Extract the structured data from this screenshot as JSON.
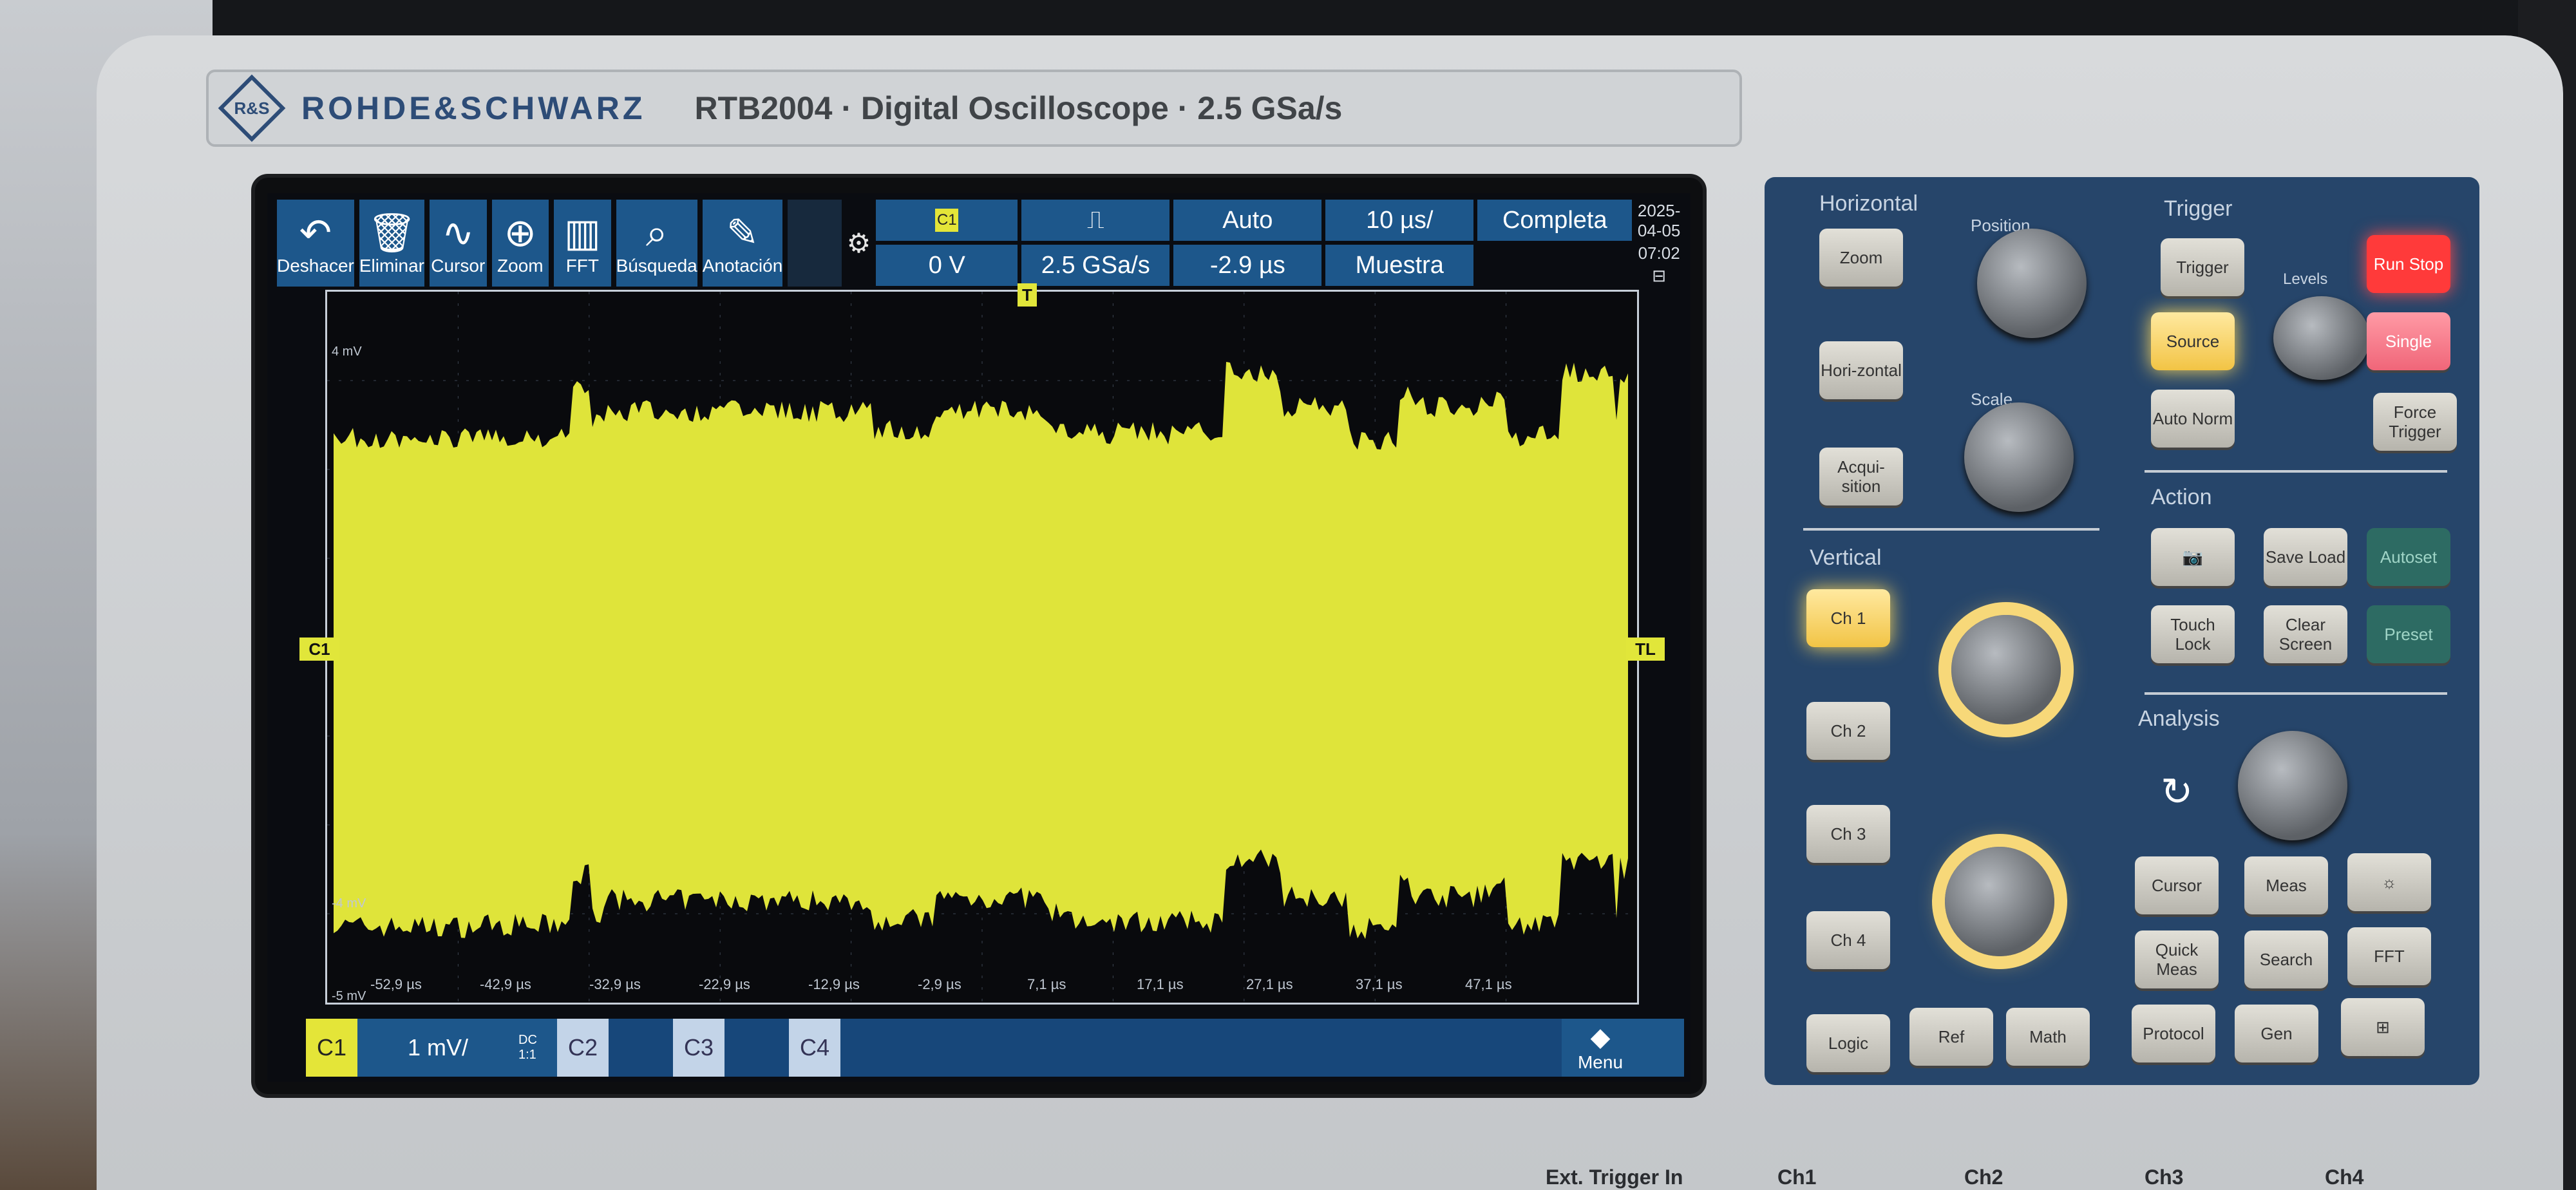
{
  "header": {
    "logo_text": "R&S",
    "brand": "ROHDE&SCHWARZ",
    "model": "RTB2004 · Digital Oscilloscope · 2.5 GSa/s"
  },
  "toolbar": {
    "buttons": [
      {
        "label": "Deshacer",
        "icon": "undo-icon"
      },
      {
        "label": "Eliminar",
        "icon": "trash-icon"
      },
      {
        "label": "Cursor",
        "icon": "cursor-wave-icon"
      },
      {
        "label": "Zoom",
        "icon": "zoom-icon"
      },
      {
        "label": "FFT",
        "icon": "fft-icon"
      },
      {
        "label": "Búsqueda",
        "icon": "search-icon"
      },
      {
        "label": "Anotación",
        "icon": "pencil-icon"
      }
    ]
  },
  "status": {
    "trigger_source": "C1",
    "trigger_slope": "rising-edge-icon",
    "trigger_mode": "Auto",
    "time_scale": "10 µs/",
    "acquisition": "Completa",
    "trigger_level": "0 V",
    "sample_rate": "2.5 GSa/s",
    "horizontal_position": "-2.9 µs",
    "acq_mode": "Muestra",
    "date": "2025-04-05",
    "time": "07:02"
  },
  "plot": {
    "trigger_marker": "T",
    "channel_marker": "C1",
    "trigger_level_marker": "TL",
    "top_level": "4 mV",
    "bottom_level": "-4 mV",
    "min_level": "-5 mV",
    "time_ticks": [
      "-52,9 µs",
      "-42,9 µs",
      "-32,9 µs",
      "-22,9 µs",
      "-12,9 µs",
      "-2,9 µs",
      "7,1 µs",
      "17,1 µs",
      "27,1 µs",
      "37,1 µs",
      "47,1 µs"
    ],
    "trace_color": "#dfe43a"
  },
  "channels": {
    "c1_label": "C1",
    "c1_scale": "1 mV/",
    "c1_coupling": "DC",
    "c1_extra": "1:1",
    "c2_label": "C2",
    "c3_label": "C3",
    "c4_label": "C4",
    "menu_label": "Menu"
  },
  "panel": {
    "horizontal_title": "Horizontal",
    "position_label": "Position",
    "scale_label": "Scale",
    "trigger_title": "Trigger",
    "level_label": "Levels",
    "vertical_title": "Vertical",
    "action_title": "Action",
    "analysis_title": "Analysis",
    "keys": {
      "zoom": "Zoom",
      "horizontal": "Hori-zontal",
      "acquisition": "Acqui-sition",
      "trigger": "Trigger",
      "source": "Source",
      "auto_norm": "Auto Norm",
      "run_stop": "Run Stop",
      "single": "Single",
      "force_trigger": "Force Trigger",
      "ch1": "Ch 1",
      "ch2": "Ch 2",
      "ch3": "Ch 3",
      "ch4": "Ch 4",
      "logic": "Logic",
      "ref": "Ref",
      "math": "Math",
      "camera": "camera-icon",
      "save_load": "Save Load",
      "autoset": "Autoset",
      "touch_lock": "Touch Lock",
      "clear_screen": "Clear Screen",
      "preset": "Preset",
      "cursor": "Cursor",
      "meas": "Meas",
      "brightness": "brightness-icon",
      "quick_meas": "Quick Meas",
      "search": "Search",
      "fft": "FFT",
      "protocol": "Protocol",
      "gen": "Gen",
      "apps": "apps-icon",
      "undo_analysis": "reload-icon"
    }
  },
  "front_labels": {
    "ext_trigger": "Ext. Trigger In",
    "ch1": "Ch1",
    "ch2": "Ch2",
    "ch3": "Ch3",
    "ch4": "Ch4"
  }
}
